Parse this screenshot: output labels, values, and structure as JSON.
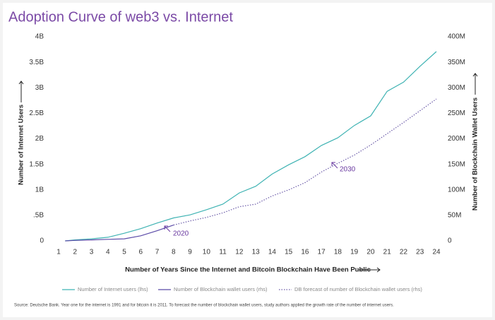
{
  "chart_data": {
    "type": "line",
    "title": "Adoption Curve of web3 vs. Internet",
    "x_label": "Number of Years Since the Internet and Bitcoin Blockchain Have Been Public",
    "y_label": "Number of Internet Users",
    "y2_label": "Number of Blockchain Wallet Users",
    "source": "Source: Deutsche Bank. Year one for the internet is 1991 and for bitcoin it is 2011. To forecast the number of blockchain wallet users, study authors applied the growth rate of the number of internet users.",
    "annotations": [
      "2020",
      "2030"
    ],
    "x": [
      1.4,
      2,
      3,
      4,
      5,
      6,
      7,
      8,
      9,
      10,
      11,
      12,
      13,
      14,
      15,
      16,
      17,
      18,
      19,
      20,
      21,
      22,
      23,
      24
    ],
    "xlim": [
      1,
      24
    ],
    "xticks": [
      1,
      2,
      3,
      4,
      5,
      6,
      7,
      8,
      9,
      10,
      11,
      12,
      13,
      14,
      15,
      16,
      17,
      18,
      19,
      20,
      21,
      22,
      23,
      24
    ],
    "ylim": [
      0,
      4
    ],
    "yticks": [
      {
        "value": 0,
        "label": "0"
      },
      {
        "value": 0.5,
        "label": ".5B"
      },
      {
        "value": 1,
        "label": "1B"
      },
      {
        "value": 1.5,
        "label": "1.5B"
      },
      {
        "value": 2,
        "label": "2B"
      },
      {
        "value": 2.5,
        "label": "2.5B"
      },
      {
        "value": 3,
        "label": "3B"
      },
      {
        "value": 3.5,
        "label": "3.5B"
      },
      {
        "value": 4,
        "label": "4B"
      }
    ],
    "y2lim": [
      0,
      400
    ],
    "y2ticks": [
      {
        "value": 0,
        "label": "0"
      },
      {
        "value": 50,
        "label": "50M"
      },
      {
        "value": 100,
        "label": "100M"
      },
      {
        "value": 150,
        "label": "150M"
      },
      {
        "value": 200,
        "label": "200M"
      },
      {
        "value": 250,
        "label": "250M"
      },
      {
        "value": 300,
        "label": "300M"
      },
      {
        "value": 350,
        "label": "350M"
      },
      {
        "value": 400,
        "label": "400M"
      }
    ],
    "series": [
      {
        "name": "Number of Internet users (lhs)",
        "color": "#3fb3b3",
        "dash": false,
        "values": [
          0,
          0.02,
          0.04,
          0.07,
          0.15,
          0.24,
          0.35,
          0.45,
          0.51,
          0.61,
          0.72,
          0.94,
          1.07,
          1.31,
          1.49,
          1.65,
          1.87,
          2.02,
          2.26,
          2.45,
          2.93,
          3.11,
          3.42,
          3.71
        ]
      },
      {
        "name": "Number of Blockchain wallet users (rhs)",
        "color": "#5b4ba8",
        "axis": "y2",
        "dash": false,
        "values": [
          0,
          1,
          2,
          3,
          4,
          10,
          20,
          31,
          null,
          null,
          null,
          null,
          null,
          null,
          null,
          null,
          null,
          null,
          null,
          null,
          null,
          null,
          null,
          null
        ]
      },
      {
        "name": "DB forecast of number of Blockchain wallet users (rhs)",
        "color": "#6a5aa8",
        "axis": "y2",
        "dash": true,
        "values": [
          null,
          null,
          null,
          null,
          null,
          null,
          null,
          31,
          39,
          46,
          55,
          67,
          72,
          88,
          100,
          114,
          135,
          152,
          168,
          188,
          210,
          232,
          255,
          278
        ]
      }
    ]
  }
}
